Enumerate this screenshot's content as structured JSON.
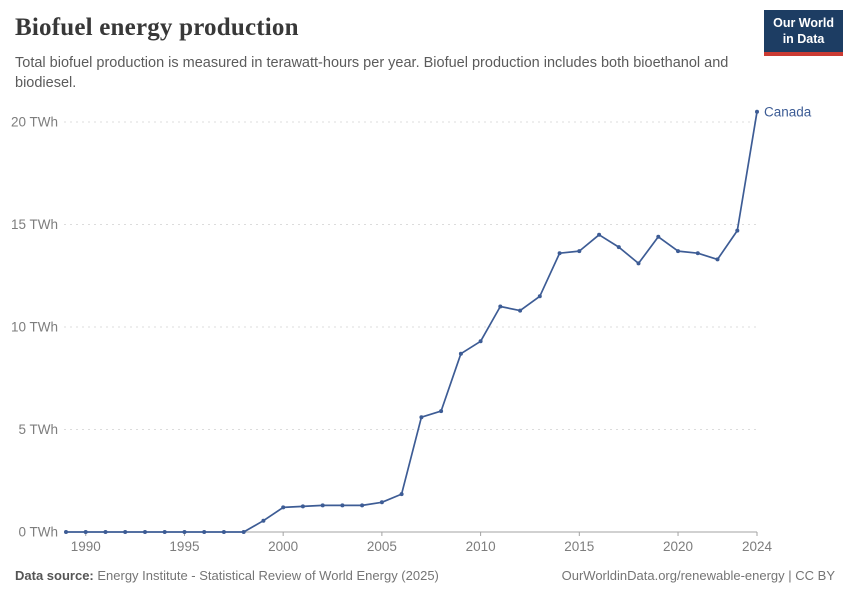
{
  "header": {
    "title": "Biofuel energy production",
    "subtitle": "Total biofuel production is measured in terawatt-hours per year. Biofuel production includes both bioethanol and biodiesel.",
    "logo_line1": "Our World",
    "logo_line2": "in Data"
  },
  "chart_data": {
    "type": "line",
    "title": "Biofuel energy production",
    "xlabel": "",
    "ylabel": "TWh",
    "unit": "TWh",
    "grid": "dashed-horizontal",
    "legend_position": "end-of-line",
    "xlim": [
      1989,
      2024
    ],
    "ylim": [
      0,
      20
    ],
    "x": [
      1989,
      1990,
      1991,
      1992,
      1993,
      1994,
      1995,
      1996,
      1997,
      1998,
      1999,
      2000,
      2001,
      2002,
      2003,
      2004,
      2005,
      2006,
      2007,
      2008,
      2009,
      2010,
      2011,
      2012,
      2013,
      2014,
      2015,
      2016,
      2017,
      2018,
      2019,
      2020,
      2021,
      2022,
      2023,
      2024
    ],
    "series": [
      {
        "name": "Canada",
        "color": "#3d5c95",
        "values": [
          0,
          0,
          0,
          0,
          0,
          0,
          0,
          0,
          0,
          0,
          0.55,
          1.2,
          1.25,
          1.3,
          1.3,
          1.3,
          1.45,
          1.85,
          5.6,
          5.9,
          8.7,
          9.3,
          11.0,
          10.8,
          11.5,
          13.6,
          13.7,
          14.5,
          13.9,
          13.1,
          14.4,
          13.7,
          13.6,
          13.3,
          14.7,
          20.5
        ]
      }
    ],
    "y_ticks": [
      {
        "value": 0,
        "label": "0 TWh"
      },
      {
        "value": 5,
        "label": "5 TWh"
      },
      {
        "value": 10,
        "label": "10 TWh"
      },
      {
        "value": 15,
        "label": "15 TWh"
      },
      {
        "value": 20,
        "label": "20 TWh"
      }
    ],
    "x_ticks": [
      {
        "value": 1990,
        "label": "1990"
      },
      {
        "value": 1995,
        "label": "1995"
      },
      {
        "value": 2000,
        "label": "2000"
      },
      {
        "value": 2005,
        "label": "2005"
      },
      {
        "value": 2010,
        "label": "2010"
      },
      {
        "value": 2015,
        "label": "2015"
      },
      {
        "value": 2020,
        "label": "2020"
      },
      {
        "value": 2024,
        "label": "2024"
      }
    ]
  },
  "footer": {
    "datasource_label": "Data source:",
    "datasource_text": " Energy Institute - Statistical Review of World Energy (2025)",
    "license_text": "OurWorldinData.org/renewable-energy | CC BY"
  },
  "colors": {
    "line": "#3d5c95",
    "gridline": "#dcdcdc",
    "axis": "#a3a3a3",
    "tick_label": "#7d7d7d",
    "logo_bg": "#1d3d63",
    "logo_accent": "#cb3b33"
  }
}
